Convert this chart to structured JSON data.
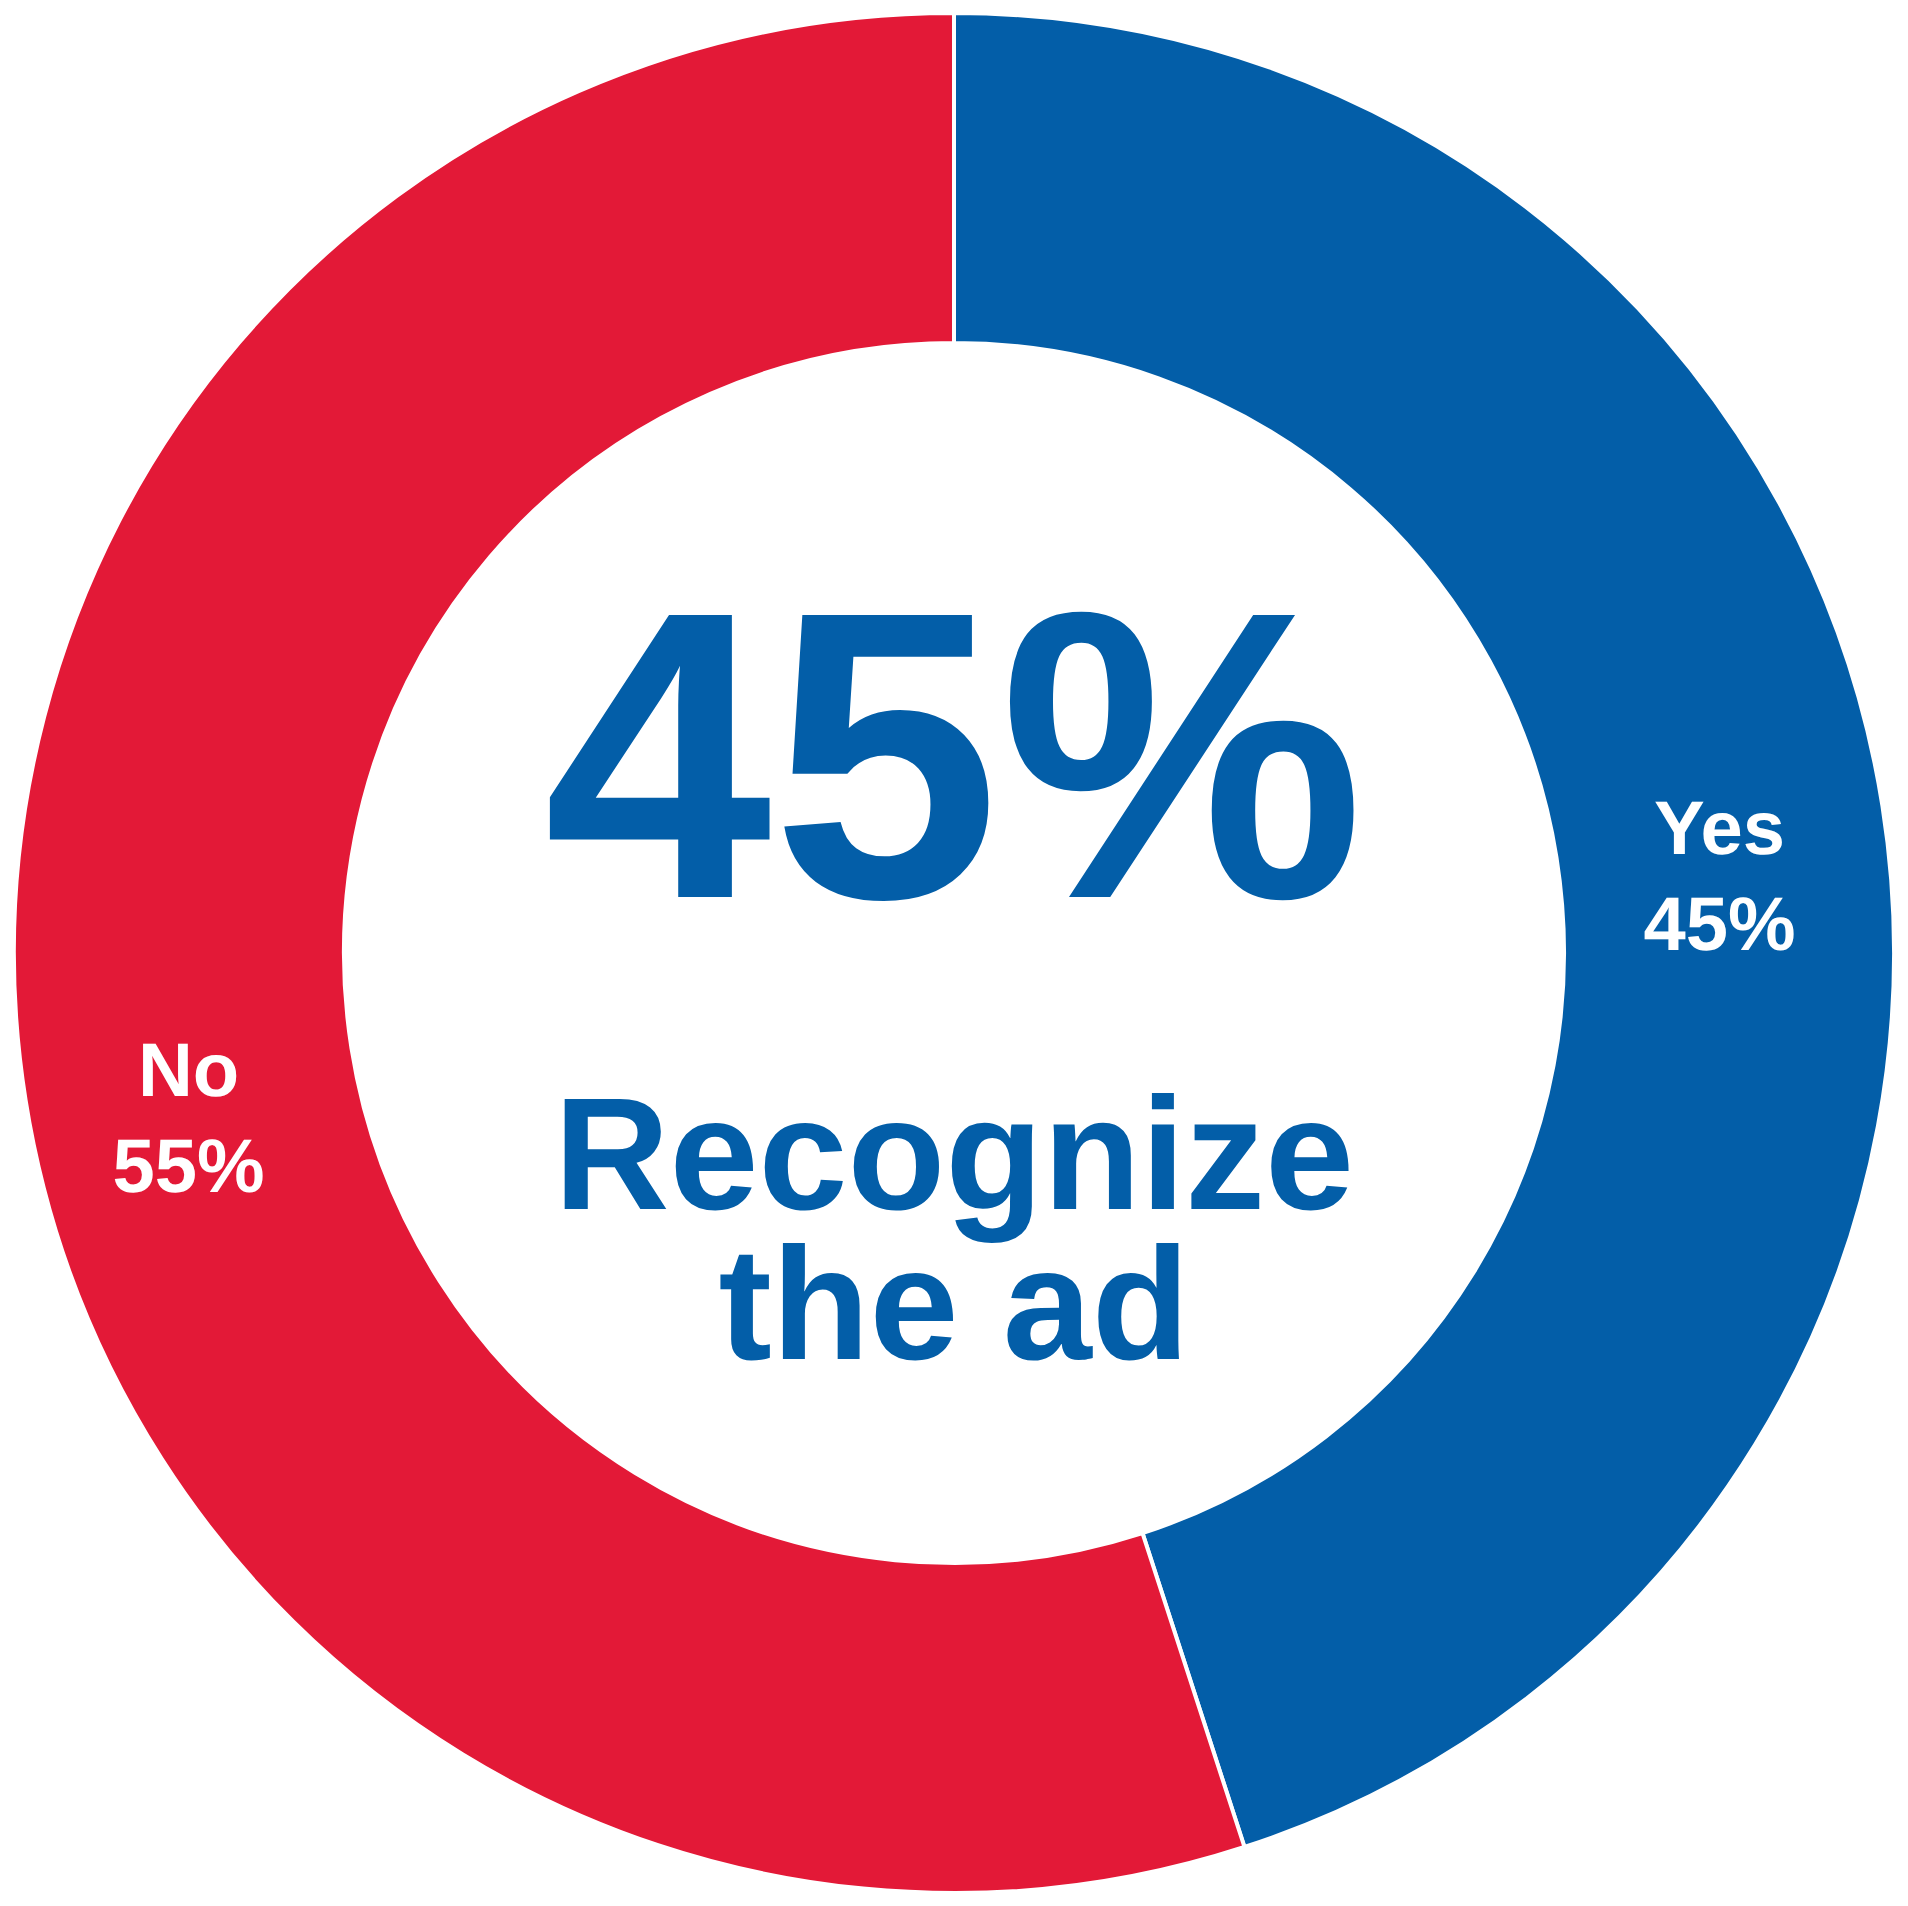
{
  "chart_data": {
    "type": "donut",
    "categories": [
      "Yes",
      "No"
    ],
    "values": [
      45,
      55
    ],
    "colors": [
      "#035ea8",
      "#e31937"
    ],
    "value_labels": [
      "45%",
      "55%"
    ],
    "annotations": [
      "45%",
      "Recognize the ad"
    ]
  }
}
